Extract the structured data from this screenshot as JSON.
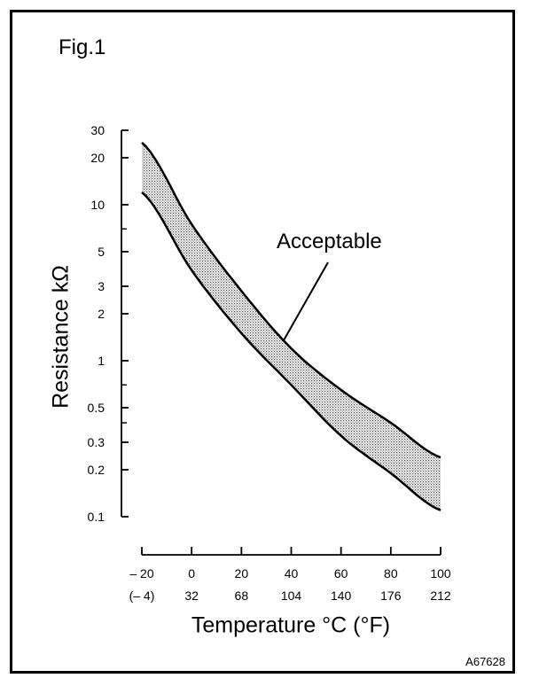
{
  "figure": {
    "label": "Fig.1",
    "code": "A67628"
  },
  "chart_data": {
    "type": "area",
    "title": "",
    "ylabel": "Resistance kΩ",
    "xlabel": "Temperature °C (°F)",
    "y_scale": "log",
    "ylim": [
      0.1,
      30
    ],
    "xlim": [
      -20,
      100
    ],
    "y_ticks": [
      30,
      20,
      10,
      5,
      3,
      2,
      1,
      0.5,
      0.3,
      0.2,
      0.1
    ],
    "y_tick_labels": [
      "30",
      "20",
      "10",
      "5",
      "3",
      "2",
      "1",
      "0.5",
      "0.3",
      "0.2",
      "0.1"
    ],
    "y_minor_ticks": [
      7,
      0.7,
      0.4
    ],
    "x_ticks": [
      -20,
      0,
      20,
      40,
      60,
      80,
      100
    ],
    "x_tick_labels_c": [
      "– 20",
      "0",
      "20",
      "40",
      "60",
      "80",
      "100"
    ],
    "x_tick_labels_f": [
      "(– 4)",
      "32",
      "68",
      "104",
      "140",
      "176",
      "212"
    ],
    "x": [
      -20,
      0,
      20,
      40,
      60,
      80,
      100
    ],
    "series": [
      {
        "values": [
          25,
          7.5,
          2.8,
          1.2,
          0.65,
          0.4,
          0.24
        ]
      },
      {
        "values": [
          12,
          3.8,
          1.5,
          0.7,
          0.33,
          0.19,
          0.11
        ]
      }
    ],
    "annotation": {
      "text": "Acceptable"
    }
  }
}
